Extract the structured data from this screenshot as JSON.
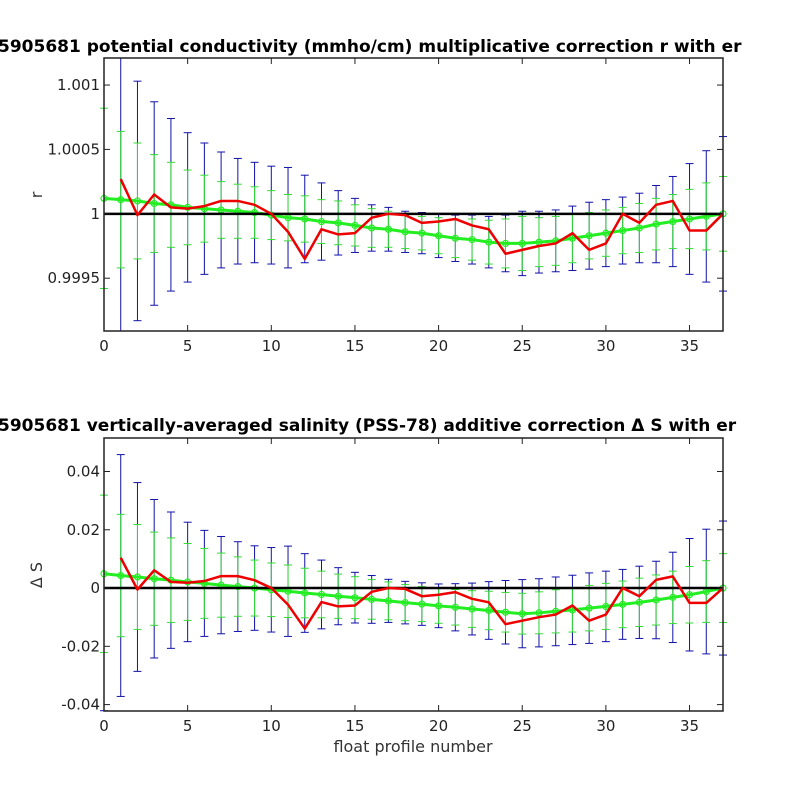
{
  "chart_data": [
    {
      "type": "line",
      "title": "5905681 potential conductivity (mmho/cm) multiplicative correction r with er",
      "xlabel": "",
      "ylabel": "r",
      "xlim": [
        0,
        37
      ],
      "ylim": [
        0.99909,
        1.00121
      ],
      "xticks": [
        0,
        5,
        10,
        15,
        20,
        25,
        30,
        35
      ],
      "xtick_labels": [
        "0",
        "5",
        "10",
        "15",
        "20",
        "25",
        "30",
        "35"
      ],
      "yticks": [
        0.9995,
        1.0,
        1.0005,
        1.001
      ],
      "ytick_labels": [
        "0.9995",
        "1",
        "1.0005",
        "1.001"
      ],
      "grid": false,
      "reference_line": 1.0,
      "colors": {
        "raw": "#ee0000",
        "fit": "#22ee22",
        "ref": "#000000",
        "err_outer": "#1111aa",
        "err_inner": "#33dd33"
      },
      "series": [
        {
          "role": "raw",
          "x": [
            1,
            2,
            3,
            4,
            5,
            6,
            7,
            8,
            9,
            10,
            11,
            12,
            13,
            14,
            15,
            16,
            17,
            18,
            19,
            20,
            21,
            22,
            23,
            24,
            25,
            26,
            27,
            28,
            29,
            30,
            31,
            32,
            33,
            34,
            35,
            36,
            37
          ],
          "y": [
            1.00027,
            0.99999,
            1.00015,
            1.00005,
            1.00004,
            1.00006,
            1.0001,
            1.0001,
            1.00007,
            1.0,
            0.99986,
            0.99965,
            0.99988,
            0.99984,
            0.99985,
            0.99997,
            1.0,
            0.99999,
            0.99993,
            0.99994,
            0.99996,
            0.99991,
            0.99988,
            0.99969,
            0.99972,
            0.99975,
            0.99977,
            0.99985,
            0.99972,
            0.99977,
            1.0,
            0.99993,
            1.00007,
            1.0001,
            0.99987,
            0.99987,
            1.0
          ]
        },
        {
          "role": "fit",
          "x": [
            0,
            1,
            2,
            3,
            4,
            5,
            6,
            7,
            8,
            9,
            10,
            11,
            12,
            13,
            14,
            15,
            16,
            17,
            18,
            19,
            20,
            21,
            22,
            23,
            24,
            25,
            26,
            27,
            28,
            29,
            30,
            31,
            32,
            33,
            34,
            35,
            36,
            37
          ],
          "y": [
            1.00012,
            1.00011,
            1.0001,
            1.00008,
            1.00007,
            1.00005,
            1.00004,
            1.00003,
            1.00002,
            1.00001,
            0.99999,
            0.99997,
            0.99996,
            0.99994,
            0.99993,
            0.99991,
            0.99989,
            0.99988,
            0.99986,
            0.99985,
            0.99983,
            0.99981,
            0.9998,
            0.99978,
            0.99977,
            0.99977,
            0.99978,
            0.99979,
            0.99981,
            0.99983,
            0.99985,
            0.99987,
            0.99989,
            0.99992,
            0.99994,
            0.99996,
            0.99998,
            1.0
          ]
        }
      ],
      "errorbars_outer": {
        "x": [
          0,
          1,
          2,
          3,
          4,
          5,
          6,
          7,
          8,
          9,
          10,
          11,
          12,
          13,
          14,
          15,
          16,
          17,
          18,
          19,
          20,
          21,
          22,
          23,
          24,
          25,
          26,
          27,
          28,
          29,
          30,
          31,
          32,
          33,
          34,
          35,
          36,
          37
        ],
        "err": [
          0.0012,
          0.00115,
          0.00093,
          0.00079,
          0.00067,
          0.00058,
          0.00051,
          0.00045,
          0.00041,
          0.00039,
          0.00038,
          0.00039,
          0.00034,
          0.0003,
          0.00025,
          0.00021,
          0.00018,
          0.00017,
          0.00016,
          0.00016,
          0.00017,
          0.00018,
          0.00019,
          0.0002,
          0.00022,
          0.00025,
          0.00024,
          0.00024,
          0.00025,
          0.00026,
          0.00026,
          0.00026,
          0.00027,
          0.0003,
          0.00035,
          0.00043,
          0.00051,
          0.0006
        ]
      },
      "errorbars_inner": {
        "x": [
          0,
          1,
          2,
          3,
          4,
          5,
          6,
          7,
          8,
          9,
          10,
          11,
          12,
          13,
          14,
          15,
          16,
          17,
          18,
          19,
          20,
          21,
          22,
          23,
          24,
          25,
          26,
          27,
          28,
          29,
          30,
          31,
          32,
          33,
          34,
          35,
          36,
          37
        ],
        "err": [
          0.0007,
          0.00053,
          0.00045,
          0.00038,
          0.00033,
          0.00029,
          0.00026,
          0.00022,
          0.00021,
          0.0002,
          0.00019,
          0.00018,
          0.00018,
          0.00017,
          0.00017,
          0.00016,
          0.00015,
          0.00014,
          0.00013,
          0.00013,
          0.00014,
          0.00015,
          0.00016,
          0.00017,
          0.00019,
          0.00021,
          0.00019,
          0.00019,
          0.00019,
          0.00018,
          0.00018,
          0.00018,
          0.00019,
          0.0002,
          0.00021,
          0.00023,
          0.00026,
          0.00029
        ]
      }
    },
    {
      "type": "line",
      "title": "5905681 vertically-averaged salinity (PSS-78) additive correction Δ S with er",
      "xlabel": "float profile number",
      "ylabel": "Δ S",
      "xlim": [
        0,
        37
      ],
      "ylim": [
        -0.0422,
        0.0515
      ],
      "xticks": [
        0,
        5,
        10,
        15,
        20,
        25,
        30,
        35
      ],
      "xtick_labels": [
        "0",
        "5",
        "10",
        "15",
        "20",
        "25",
        "30",
        "35"
      ],
      "yticks": [
        -0.04,
        -0.02,
        0,
        0.02,
        0.04
      ],
      "ytick_labels": [
        "-0.04",
        "-0.02",
        "0",
        "0.02",
        "0.04"
      ],
      "grid": false,
      "reference_line": 0,
      "colors": {
        "raw": "#ee0000",
        "fit": "#22ee22",
        "ref": "#000000",
        "err_outer": "#1111aa",
        "err_inner": "#33dd33"
      },
      "series": [
        {
          "role": "raw",
          "x": [
            1,
            2,
            3,
            4,
            5,
            6,
            7,
            8,
            9,
            10,
            11,
            12,
            13,
            14,
            15,
            16,
            17,
            18,
            19,
            20,
            21,
            22,
            23,
            24,
            25,
            26,
            27,
            28,
            29,
            30,
            31,
            32,
            33,
            34,
            35,
            36,
            37
          ],
          "y": [
            0.0104,
            -0.0005,
            0.0061,
            0.0021,
            0.0018,
            0.0024,
            0.0041,
            0.0041,
            0.0027,
            0.0,
            -0.0057,
            -0.0139,
            -0.0048,
            -0.0063,
            -0.006,
            -0.0013,
            0.0,
            -0.0003,
            -0.0028,
            -0.0023,
            -0.0014,
            -0.0037,
            -0.0049,
            -0.0124,
            -0.0112,
            -0.01,
            -0.0091,
            -0.006,
            -0.0112,
            -0.0091,
            0.0,
            -0.0028,
            0.0028,
            0.004,
            -0.0051,
            -0.0051,
            0.0
          ]
        },
        {
          "role": "fit",
          "x": [
            0,
            1,
            2,
            3,
            4,
            5,
            6,
            7,
            8,
            9,
            10,
            11,
            12,
            13,
            14,
            15,
            16,
            17,
            18,
            19,
            20,
            21,
            22,
            23,
            24,
            25,
            26,
            27,
            28,
            29,
            30,
            31,
            32,
            33,
            34,
            35,
            36,
            37
          ],
          "y": [
            0.0049,
            0.0043,
            0.0038,
            0.0032,
            0.0027,
            0.0021,
            0.0016,
            0.001,
            0.0005,
            0.0,
            -0.0006,
            -0.0011,
            -0.0017,
            -0.0022,
            -0.0028,
            -0.0033,
            -0.0039,
            -0.0044,
            -0.005,
            -0.0055,
            -0.0061,
            -0.0066,
            -0.0072,
            -0.0077,
            -0.0083,
            -0.0088,
            -0.0085,
            -0.008,
            -0.0075,
            -0.0069,
            -0.0063,
            -0.0056,
            -0.0049,
            -0.0041,
            -0.0032,
            -0.0023,
            -0.0012,
            0.0
          ]
        }
      ],
      "errorbars_outer": {
        "x": [
          0,
          1,
          2,
          3,
          4,
          5,
          6,
          7,
          8,
          9,
          10,
          11,
          12,
          13,
          14,
          15,
          16,
          17,
          18,
          19,
          20,
          21,
          22,
          23,
          24,
          25,
          26,
          27,
          28,
          29,
          30,
          31,
          32,
          33,
          34,
          35,
          36,
          37
        ],
        "err": [
          0.047,
          0.0415,
          0.0324,
          0.0272,
          0.0234,
          0.0205,
          0.0182,
          0.0167,
          0.0154,
          0.0145,
          0.0145,
          0.0155,
          0.0135,
          0.0118,
          0.0098,
          0.0087,
          0.0082,
          0.0074,
          0.0073,
          0.0073,
          0.0075,
          0.0081,
          0.0089,
          0.0099,
          0.0109,
          0.0117,
          0.0117,
          0.0118,
          0.0119,
          0.0121,
          0.0121,
          0.012,
          0.0124,
          0.0133,
          0.0155,
          0.0193,
          0.0214,
          0.023
        ]
      },
      "errorbars_inner": {
        "x": [
          0,
          1,
          2,
          3,
          4,
          5,
          6,
          7,
          8,
          9,
          10,
          11,
          12,
          13,
          14,
          15,
          16,
          17,
          18,
          19,
          20,
          21,
          22,
          23,
          24,
          25,
          26,
          27,
          28,
          29,
          30,
          31,
          32,
          33,
          34,
          35,
          36,
          37
        ],
        "err": [
          0.027,
          0.021,
          0.018,
          0.016,
          0.0145,
          0.0132,
          0.012,
          0.011,
          0.0102,
          0.0096,
          0.0092,
          0.009,
          0.0085,
          0.008,
          0.0076,
          0.0072,
          0.0068,
          0.0065,
          0.0062,
          0.006,
          0.006,
          0.0061,
          0.0063,
          0.0066,
          0.0068,
          0.007,
          0.0072,
          0.0074,
          0.0076,
          0.0078,
          0.0079,
          0.008,
          0.0083,
          0.0086,
          0.009,
          0.0097,
          0.0106,
          0.0118
        ]
      }
    }
  ]
}
